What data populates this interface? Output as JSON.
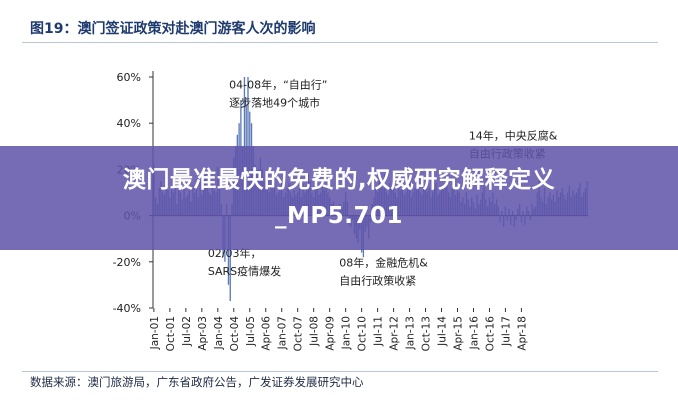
{
  "figure": {
    "title": "图19：澳门签证政策对赴澳门游客人次的影响",
    "source": "数据来源：澳门旅游局，广东省政府公告，广发证券发展研究中心"
  },
  "banner": {
    "text": "澳门最准最快的免费的,权威研究解释定义_MP5.701"
  },
  "colors": {
    "title": "#1e3a6e",
    "series": "#5b79b8",
    "axis": "#333333",
    "banner": "#6054aa",
    "banner_text": "#ffffff"
  },
  "chart_data": {
    "type": "bar",
    "title": "",
    "xlabel": "",
    "ylabel": "",
    "ylim": [
      -0.4,
      0.6
    ],
    "yticks": [
      "60%",
      "40%",
      "20%",
      "0%",
      "-20%",
      "-40%"
    ],
    "grid": false,
    "legend": "none",
    "xticks": [
      "Jan-01",
      "Oct-01",
      "Jul-02",
      "Apr-03",
      "Jan-04",
      "Oct-04",
      "Jul-05",
      "Apr-06",
      "Jan-07",
      "Oct-07",
      "Jul-08",
      "Apr-09",
      "Jan-10",
      "Oct-10",
      "Jul-11",
      "Apr-12",
      "Jan-13",
      "Oct-13",
      "Jul-14",
      "Apr-15",
      "Jan-16",
      "Oct-16",
      "Jul-17",
      "Apr-18"
    ],
    "x_start": "2001-01",
    "x_frequency": "monthly",
    "series": [
      {
        "values": [
          0.22,
          0.08,
          0.05,
          0.12,
          0.15,
          0.1,
          0.09,
          0.13,
          0.11,
          0.08,
          0.12,
          0.1,
          0.14,
          0.05,
          0.18,
          0.1,
          0.07,
          0.12,
          0.08,
          0.09,
          0.11,
          0.06,
          0.13,
          0.1,
          0.12,
          0.08,
          0.15,
          0.09,
          0.2,
          0.18,
          0.12,
          0.1,
          0.09,
          0.14,
          0.11,
          0.1,
          0.21,
          0.12,
          0.05,
          -0.18,
          -0.2,
          0.05,
          -0.3,
          -0.37,
          0.05,
          0.25,
          0.3,
          0.35,
          0.4,
          0.5,
          0.3,
          0.6,
          0.48,
          0.6,
          0.45,
          0.4,
          0.3,
          0.22,
          0.18,
          0.2,
          0.25,
          0.2,
          0.15,
          0.12,
          0.18,
          0.1,
          0.16,
          0.12,
          0.14,
          0.09,
          0.1,
          0.12,
          0.15,
          0.08,
          0.1,
          0.12,
          0.14,
          0.1,
          0.08,
          0.11,
          0.09,
          0.1,
          0.12,
          0.08,
          0.14,
          0.1,
          0.12,
          0.18,
          0.15,
          0.1,
          0.08,
          0.12,
          0.14,
          0.09,
          0.1,
          0.13,
          0.11,
          0.12,
          0.1,
          0.08,
          0.05,
          0.06,
          0.04,
          0.03,
          0.02,
          0.05,
          0.03,
          0.06,
          0.1,
          0.06,
          -0.04,
          -0.05,
          -0.02,
          -0.08,
          -0.1,
          -0.12,
          -0.06,
          -0.16,
          -0.18,
          -0.07,
          -0.05,
          -0.1,
          -0.03,
          0.05,
          0.08,
          0.12,
          0.1,
          0.2,
          0.15,
          0.12,
          0.18,
          0.1,
          0.09,
          0.14,
          0.12,
          0.15,
          0.1,
          0.08,
          0.12,
          0.11,
          0.14,
          0.09,
          0.1,
          0.12,
          0.15,
          0.08,
          0.1,
          0.12,
          0.11,
          0.14,
          0.1,
          0.09,
          0.13,
          0.11,
          0.1,
          0.12,
          0.08,
          0.1,
          0.12,
          0.14,
          0.09,
          0.1,
          0.13,
          0.11,
          0.12,
          0.15,
          0.1,
          0.08,
          0.12,
          0.14,
          0.09,
          0.11,
          0.1,
          0.06,
          0.08,
          0.05,
          0.1,
          0.07,
          0.04,
          0.08,
          0.06,
          0.03,
          0.09,
          0.05,
          0.07,
          0.1,
          0.13,
          0.07,
          0.04,
          0.08,
          0.06,
          0.1,
          0.05,
          0.07,
          0.04,
          -0.03,
          0.02,
          -0.05,
          0.04,
          -0.02,
          0.03,
          -0.04,
          0.02,
          -0.05,
          -0.02,
          0.03,
          0.05,
          -0.03,
          0.02,
          -0.04,
          0.04,
          0.02,
          -0.02,
          0.05,
          0.03,
          0.04,
          0.1,
          0.15,
          0.08,
          0.06,
          0.12,
          0.05,
          0.08,
          0.1,
          0.07,
          0.09,
          0.06,
          0.11,
          0.08,
          0.1,
          0.12,
          0.09,
          0.07,
          0.1,
          0.13,
          0.08,
          0.11,
          0.09,
          0.1,
          0.12,
          0.14,
          0.08,
          0.1,
          0.12,
          0.15
        ]
      }
    ],
    "annotations": [
      {
        "text": "04-08年，“自由行”",
        "text2": "逐步落地49个城市",
        "x": "2004-04",
        "y": 0.55
      },
      {
        "text": "14年，中央反腐&",
        "text2": "自由行政策收紧",
        "x": "2015-07",
        "y": 0.33
      },
      {
        "text": "02/03年，",
        "text2": "SARS疫情爆发",
        "x": "2003-04",
        "y": -0.18
      },
      {
        "text": "08年，金融危机&",
        "text2": "自由行政策收紧",
        "x": "2009-06",
        "y": -0.22
      }
    ]
  }
}
